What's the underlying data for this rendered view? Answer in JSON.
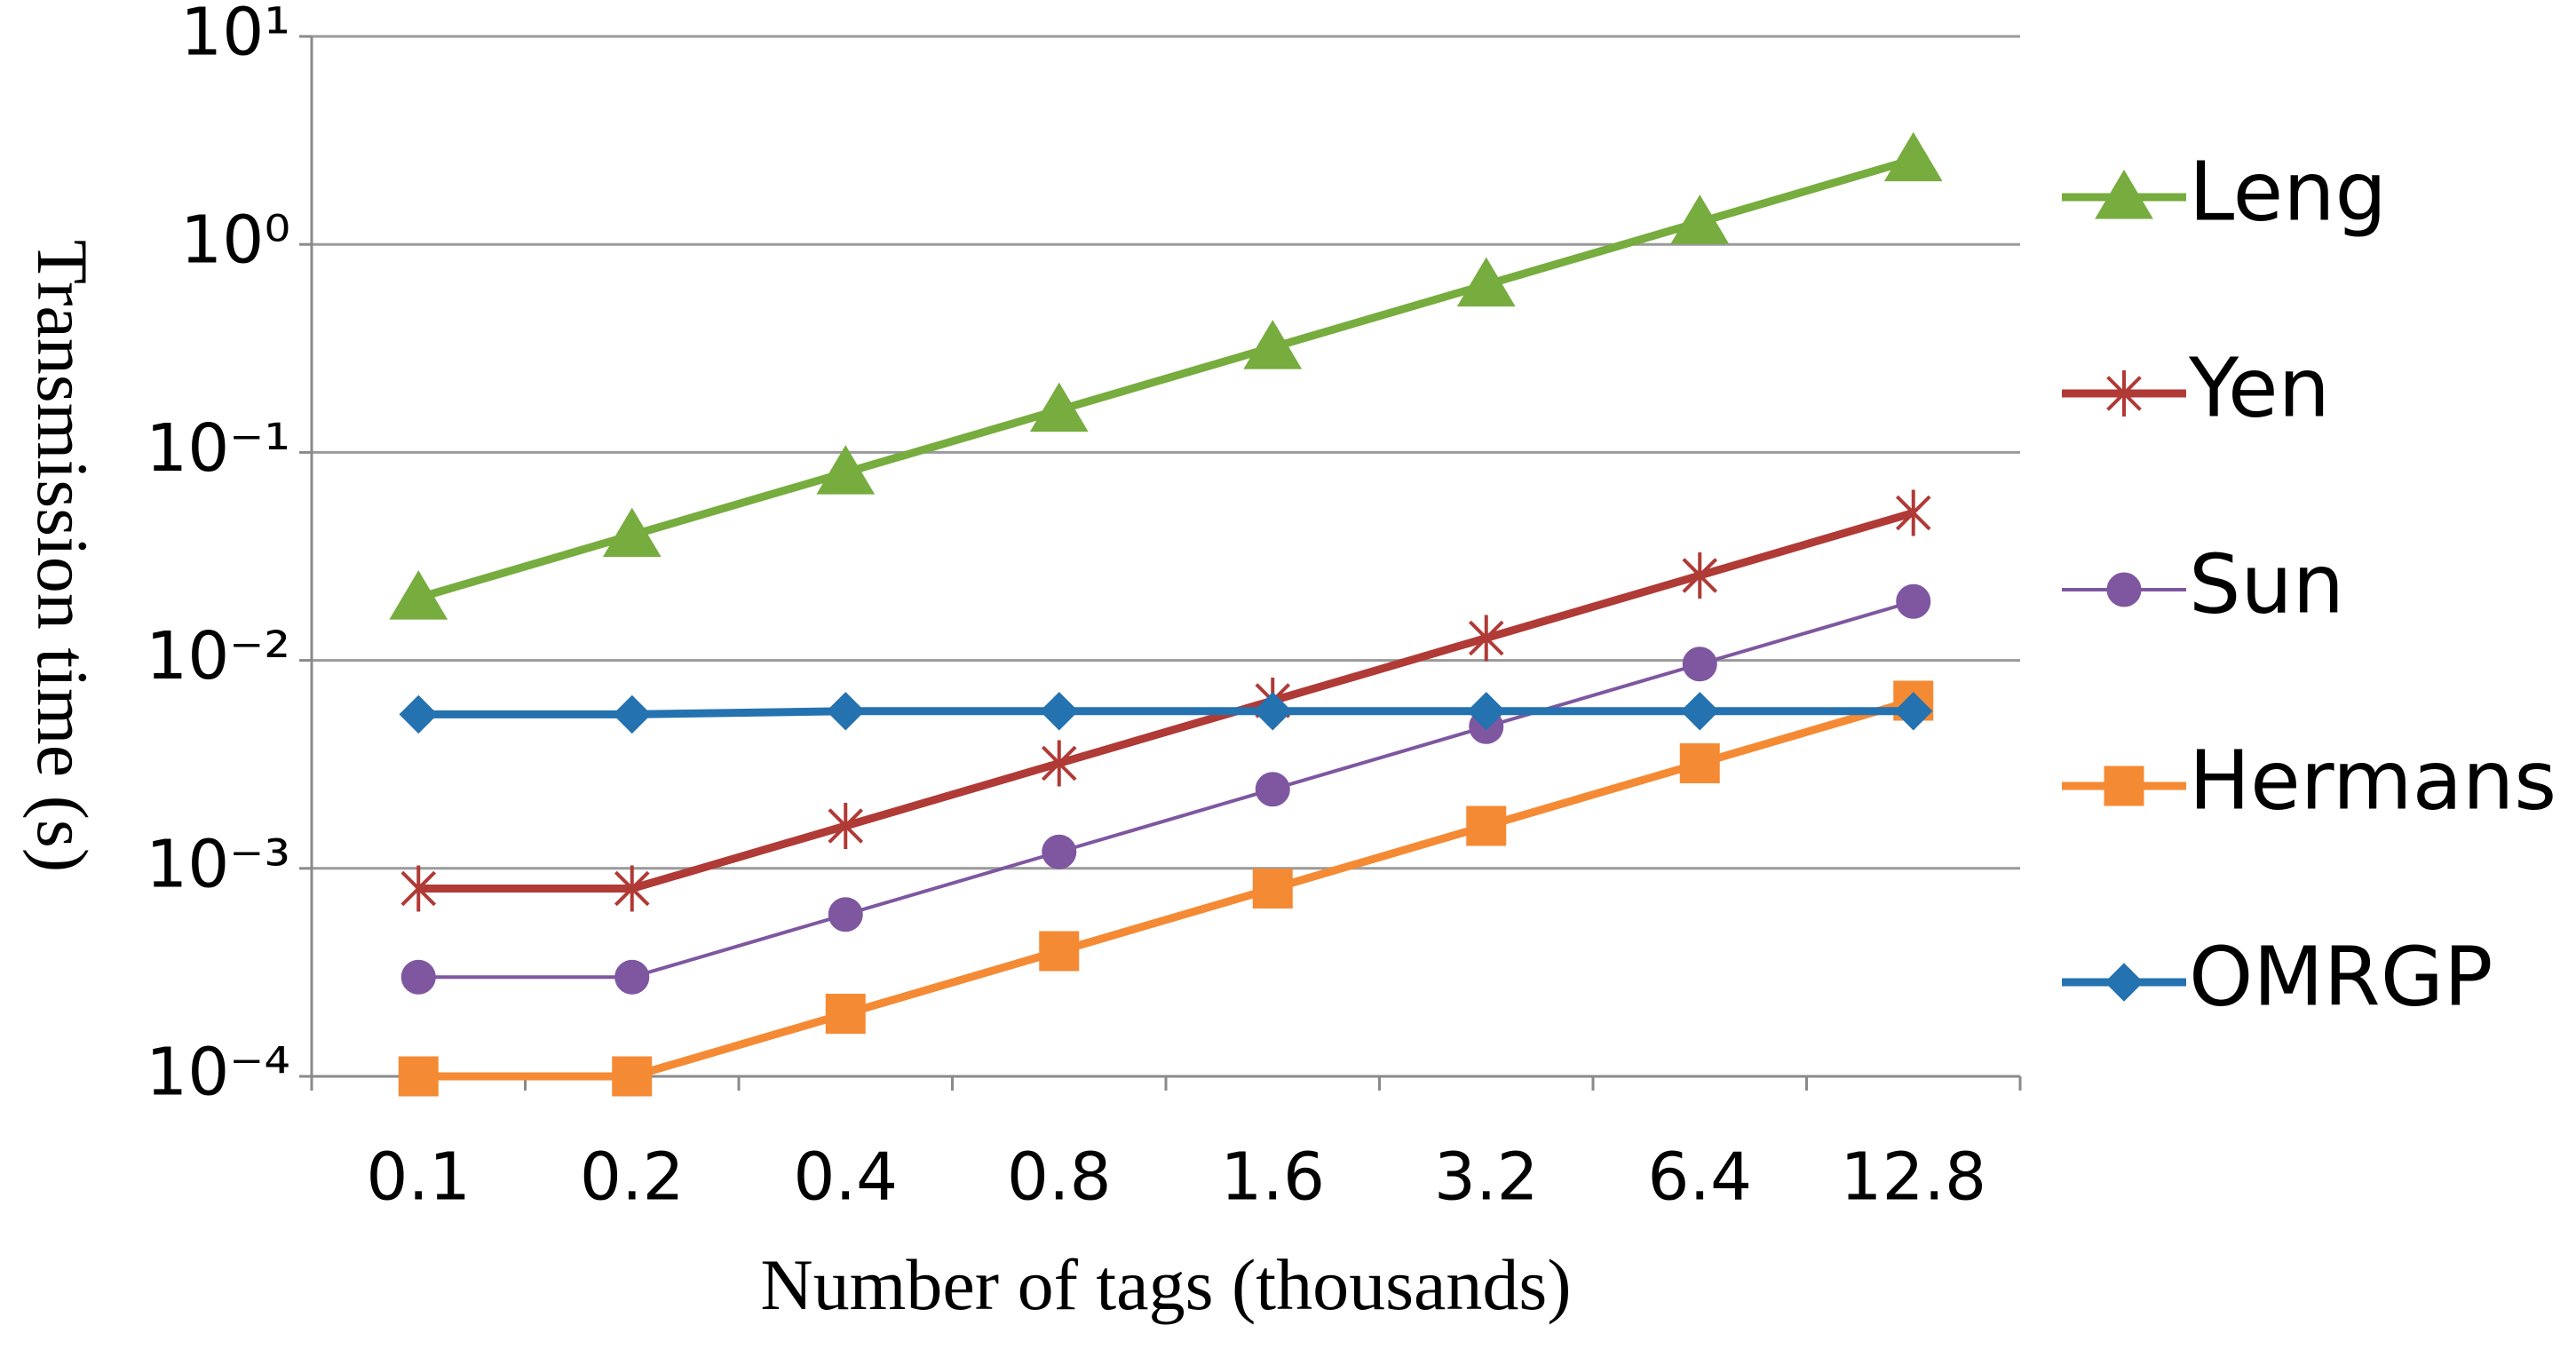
{
  "chart_data": {
    "type": "line",
    "x_label": "Number of tags (thousands)",
    "y_label": "Transmission time (s)",
    "categories": [
      "0.1",
      "0.2",
      "0.4",
      "0.8",
      "1.6",
      "3.2",
      "6.4",
      "12.8"
    ],
    "log_y": true,
    "grid": true,
    "legend": "right",
    "ylim": [
      0.0001,
      10
    ],
    "yticks": [
      {
        "value": 0.0001,
        "label": "10⁻⁴"
      },
      {
        "value": 0.001,
        "label": "10⁻³"
      },
      {
        "value": 0.01,
        "label": "10⁻²"
      },
      {
        "value": 0.1,
        "label": "10⁻¹"
      },
      {
        "value": 1,
        "label": "10⁰"
      },
      {
        "value": 10,
        "label": "10¹"
      }
    ],
    "series": [
      {
        "name": "Leng",
        "color": "#77ac3e",
        "marker": "triangle",
        "values": [
          0.02,
          0.04,
          0.08,
          0.16,
          0.32,
          0.64,
          1.28,
          2.56
        ]
      },
      {
        "name": "Yen",
        "color": "#b03a36",
        "marker": "star",
        "values": [
          0.0008,
          0.0008,
          0.0016,
          0.0032,
          0.0064,
          0.0128,
          0.0256,
          0.0512
        ]
      },
      {
        "name": "Sun",
        "color": "#7e57a0",
        "marker": "circle",
        "values": [
          0.0003,
          0.0003,
          0.0006,
          0.0012,
          0.0024,
          0.0048,
          0.0096,
          0.0192
        ]
      },
      {
        "name": "Hermans",
        "color": "#f58a34",
        "marker": "square",
        "values": [
          0.0001,
          0.0001,
          0.0002,
          0.0004,
          0.0008,
          0.0016,
          0.0032,
          0.0064
        ]
      },
      {
        "name": "OMRGP",
        "color": "#2472b0",
        "marker": "diamond",
        "values": [
          0.0055,
          0.0055,
          0.0057,
          0.0057,
          0.0057,
          0.0057,
          0.0057,
          0.0057
        ]
      }
    ]
  }
}
